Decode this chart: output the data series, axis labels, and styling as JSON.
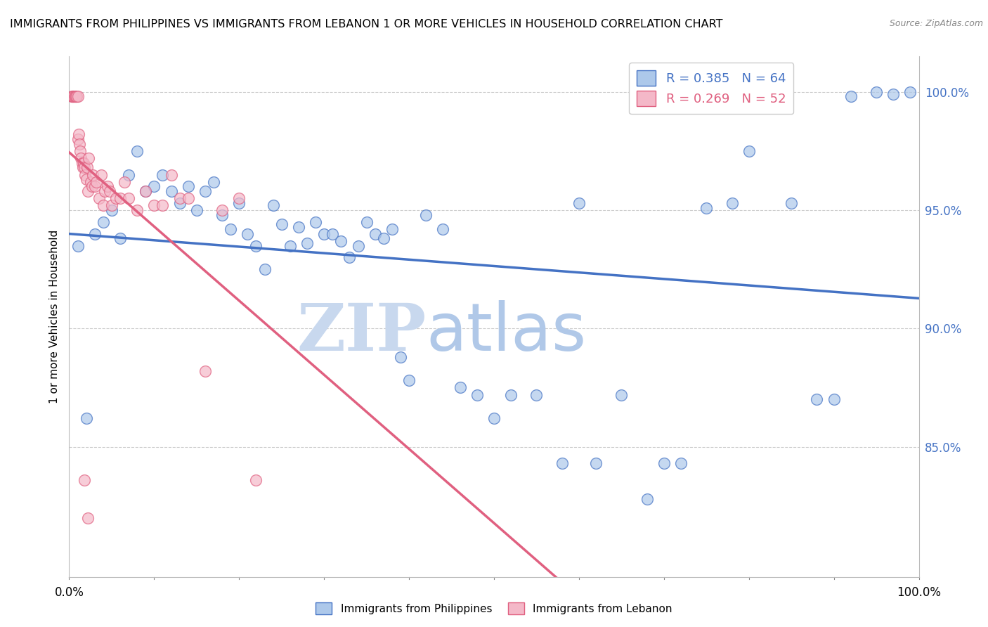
{
  "title": "IMMIGRANTS FROM PHILIPPINES VS IMMIGRANTS FROM LEBANON 1 OR MORE VEHICLES IN HOUSEHOLD CORRELATION CHART",
  "source": "Source: ZipAtlas.com",
  "ylabel": "1 or more Vehicles in Household",
  "ytick_values": [
    0.85,
    0.9,
    0.95,
    1.0
  ],
  "xmin": 0.0,
  "xmax": 1.0,
  "ymin": 0.795,
  "ymax": 1.015,
  "legend_blue_label": "Immigrants from Philippines",
  "legend_pink_label": "Immigrants from Lebanon",
  "R_blue": 0.385,
  "N_blue": 64,
  "R_pink": 0.269,
  "N_pink": 52,
  "blue_color": "#adc8ea",
  "blue_line_color": "#4472c4",
  "pink_color": "#f4b8c8",
  "pink_line_color": "#e06080",
  "blue_scatter_x": [
    0.01,
    0.02,
    0.03,
    0.04,
    0.05,
    0.06,
    0.07,
    0.08,
    0.09,
    0.1,
    0.11,
    0.12,
    0.13,
    0.14,
    0.15,
    0.16,
    0.17,
    0.18,
    0.19,
    0.2,
    0.21,
    0.22,
    0.23,
    0.24,
    0.25,
    0.26,
    0.27,
    0.28,
    0.29,
    0.3,
    0.31,
    0.32,
    0.33,
    0.34,
    0.35,
    0.36,
    0.37,
    0.38,
    0.39,
    0.4,
    0.42,
    0.44,
    0.46,
    0.48,
    0.5,
    0.52,
    0.55,
    0.58,
    0.6,
    0.62,
    0.65,
    0.68,
    0.7,
    0.72,
    0.75,
    0.78,
    0.8,
    0.85,
    0.88,
    0.9,
    0.92,
    0.95,
    0.97,
    0.99
  ],
  "blue_scatter_y": [
    0.935,
    0.862,
    0.94,
    0.945,
    0.95,
    0.938,
    0.965,
    0.975,
    0.958,
    0.96,
    0.965,
    0.958,
    0.953,
    0.96,
    0.95,
    0.958,
    0.962,
    0.948,
    0.942,
    0.953,
    0.94,
    0.935,
    0.925,
    0.952,
    0.944,
    0.935,
    0.943,
    0.936,
    0.945,
    0.94,
    0.94,
    0.937,
    0.93,
    0.935,
    0.945,
    0.94,
    0.938,
    0.942,
    0.888,
    0.878,
    0.948,
    0.942,
    0.875,
    0.872,
    0.862,
    0.872,
    0.872,
    0.843,
    0.953,
    0.843,
    0.872,
    0.828,
    0.843,
    0.843,
    0.951,
    0.953,
    0.975,
    0.953,
    0.87,
    0.87,
    0.998,
    1.0,
    0.999,
    1.0
  ],
  "pink_scatter_x": [
    0.003,
    0.004,
    0.005,
    0.005,
    0.006,
    0.007,
    0.008,
    0.009,
    0.01,
    0.01,
    0.011,
    0.012,
    0.013,
    0.014,
    0.015,
    0.016,
    0.017,
    0.018,
    0.019,
    0.02,
    0.021,
    0.022,
    0.023,
    0.025,
    0.027,
    0.028,
    0.03,
    0.032,
    0.035,
    0.038,
    0.04,
    0.042,
    0.045,
    0.048,
    0.05,
    0.055,
    0.06,
    0.065,
    0.07,
    0.08,
    0.09,
    0.1,
    0.11,
    0.12,
    0.13,
    0.14,
    0.16,
    0.18,
    0.2,
    0.22,
    0.018,
    0.022
  ],
  "pink_scatter_y": [
    0.998,
    0.998,
    0.998,
    0.998,
    0.998,
    0.998,
    0.998,
    0.998,
    0.998,
    0.98,
    0.982,
    0.978,
    0.975,
    0.972,
    0.97,
    0.968,
    0.97,
    0.968,
    0.965,
    0.963,
    0.968,
    0.958,
    0.972,
    0.962,
    0.96,
    0.965,
    0.96,
    0.962,
    0.955,
    0.965,
    0.952,
    0.958,
    0.96,
    0.958,
    0.952,
    0.955,
    0.955,
    0.962,
    0.955,
    0.95,
    0.958,
    0.952,
    0.952,
    0.965,
    0.955,
    0.955,
    0.882,
    0.95,
    0.955,
    0.836,
    0.836,
    0.82
  ],
  "watermark_left": "ZIP",
  "watermark_right": "atlas",
  "watermark_color_left": "#c8d8ee",
  "watermark_color_right": "#b0c8e8",
  "grid_color": "#cccccc",
  "background_color": "#ffffff"
}
